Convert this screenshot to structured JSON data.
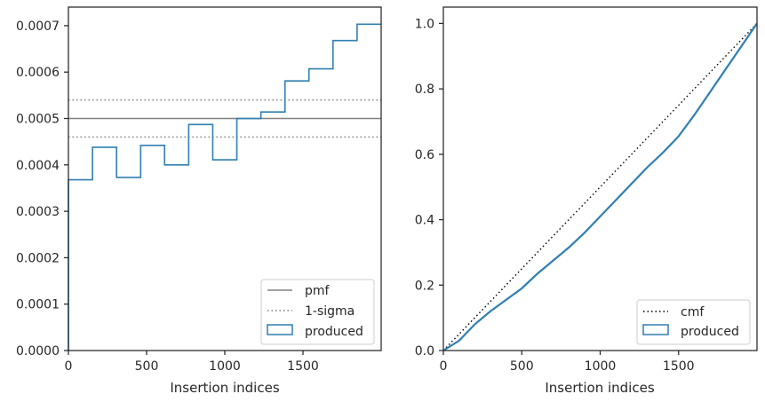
{
  "colors": {
    "produced": "#2f7fb2",
    "pmf": "#808080",
    "sigma": "#808080",
    "cmf": "#000000",
    "axes": "#262626"
  },
  "chart_data": [
    {
      "type": "histogram-step",
      "xlabel": "Insertion indices",
      "ylabel": "",
      "xlim": [
        0,
        2000
      ],
      "ylim": [
        0,
        0.00074
      ],
      "xticks": [
        0,
        500,
        1000,
        1500
      ],
      "xtick_labels": [
        "0",
        "500",
        "1000",
        "1500"
      ],
      "yticks": [
        0,
        0.0001,
        0.0002,
        0.0003,
        0.0004,
        0.0005,
        0.0006,
        0.0007
      ],
      "ytick_labels": [
        "0.0000",
        "0.0001",
        "0.0002",
        "0.0003",
        "0.0004",
        "0.0005",
        "0.0006",
        "0.0007"
      ],
      "bin_edges": [
        0,
        154,
        308,
        462,
        615,
        769,
        923,
        1077,
        1231,
        1385,
        1538,
        1692,
        1846,
        2000
      ],
      "series": [
        {
          "name": "produced",
          "style": "step",
          "values": [
            0.000368,
            0.000438,
            0.000373,
            0.000442,
            0.0004,
            0.000487,
            0.000411,
            0.0005,
            0.000514,
            0.000581,
            0.000607,
            0.000668,
            0.000703
          ]
        }
      ],
      "reference_lines": [
        {
          "name": "pmf",
          "style": "solid",
          "y": 0.0005
        },
        {
          "name": "1-sigma",
          "style": "dotted",
          "y": 0.00054
        },
        {
          "name": "",
          "style": "dotted",
          "y": 0.00046
        }
      ],
      "legend": {
        "position": "bottom-right",
        "entries": [
          "pmf",
          "1-sigma",
          "produced"
        ]
      }
    },
    {
      "type": "line",
      "xlabel": "Insertion indices",
      "ylabel": "",
      "xlim": [
        0,
        2000
      ],
      "ylim": [
        0,
        1.05
      ],
      "xticks": [
        0,
        500,
        1000,
        1500
      ],
      "xtick_labels": [
        "0",
        "500",
        "1000",
        "1500"
      ],
      "yticks": [
        0,
        0.2,
        0.4,
        0.6,
        0.8,
        1.0
      ],
      "ytick_labels": [
        "0.0",
        "0.2",
        "0.4",
        "0.6",
        "0.8",
        "1.0"
      ],
      "series": [
        {
          "name": "cmf",
          "style": "dotted",
          "x": [
            0,
            2000
          ],
          "y": [
            0,
            1.0
          ]
        },
        {
          "name": "produced",
          "style": "solid",
          "x": [
            0,
            100,
            200,
            300,
            400,
            500,
            600,
            700,
            800,
            900,
            1000,
            1100,
            1200,
            1300,
            1400,
            1500,
            1600,
            1700,
            1800,
            1900,
            2000
          ],
          "y": [
            0,
            0.03,
            0.08,
            0.12,
            0.155,
            0.19,
            0.235,
            0.275,
            0.315,
            0.36,
            0.41,
            0.46,
            0.51,
            0.56,
            0.605,
            0.655,
            0.72,
            0.79,
            0.86,
            0.93,
            1.0
          ]
        }
      ],
      "legend": {
        "position": "bottom-right",
        "entries": [
          "cmf",
          "produced"
        ]
      }
    }
  ]
}
